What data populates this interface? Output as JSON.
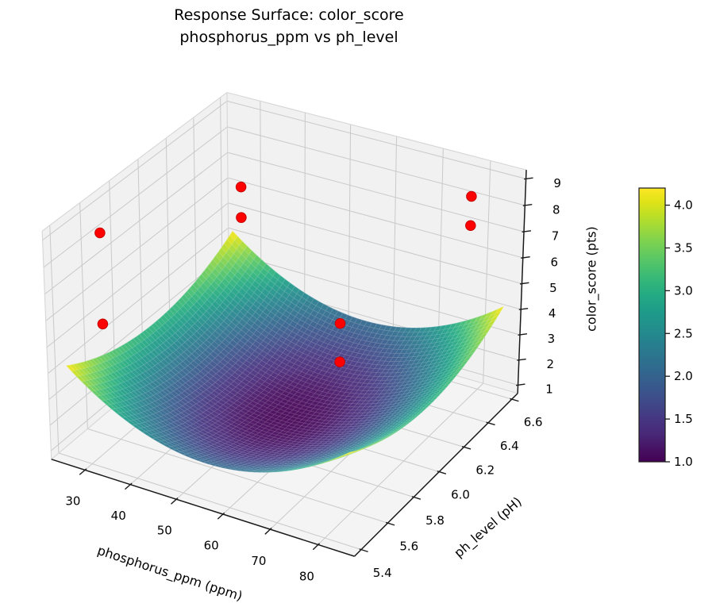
{
  "title": {
    "line1": "Response Surface: color_score",
    "line2": "phosphorus_ppm vs ph_level"
  },
  "chart_data": {
    "type": "surface",
    "title": "Response Surface: color_score\nphosphorus_ppm vs ph_level",
    "xlabel": "phosphorus_ppm (ppm)",
    "ylabel": "ph_level (pH)",
    "zlabel": "color_score (pts)",
    "xlim": [
      22.5,
      87.5
    ],
    "ylim": [
      5.35,
      6.65
    ],
    "zlim": [
      0.667,
      9.333
    ],
    "x_ticks": [
      {
        "v": 30,
        "label": "30"
      },
      {
        "v": 40,
        "label": "40"
      },
      {
        "v": 50,
        "label": "50"
      },
      {
        "v": 60,
        "label": "60"
      },
      {
        "v": 70,
        "label": "70"
      },
      {
        "v": 80,
        "label": "80"
      }
    ],
    "y_ticks": [
      {
        "v": 5.4,
        "label": "5.4"
      },
      {
        "v": 5.6,
        "label": "5.6"
      },
      {
        "v": 5.8,
        "label": "5.8"
      },
      {
        "v": 6.0,
        "label": "6.0"
      },
      {
        "v": 6.2,
        "label": "6.2"
      },
      {
        "v": 6.4,
        "label": "6.4"
      },
      {
        "v": 6.6,
        "label": "6.6"
      }
    ],
    "z_ticks": [
      {
        "v": 1,
        "label": "1"
      },
      {
        "v": 2,
        "label": "2"
      },
      {
        "v": 3,
        "label": "3"
      },
      {
        "v": 4,
        "label": "4"
      },
      {
        "v": 5,
        "label": "5"
      },
      {
        "v": 6,
        "label": "6"
      },
      {
        "v": 7,
        "label": "7"
      },
      {
        "v": 8,
        "label": "8"
      },
      {
        "v": 9,
        "label": "9"
      }
    ],
    "grid": true,
    "view": {
      "elev": 30,
      "azim": -60,
      "projection": "3d"
    },
    "surface": {
      "colormap": "viridis",
      "model": "z = 1.0 + 2.1*((x-55)/30)^2 + 1.1*((y-6.0)/0.6)^2",
      "z0": 1.0,
      "a": 2.1,
      "x0": 55,
      "xs": 30,
      "b": 1.1,
      "y0": 6.0,
      "ys": 0.6,
      "x_range": [
        25,
        85
      ],
      "y_range": [
        5.4,
        6.6
      ],
      "z_min": 1.0,
      "z_max": 4.2,
      "mesh_n": 55
    },
    "scatter": {
      "color": "#ff0000",
      "edge_color": "#c00000",
      "points": [
        {
          "phosphorus_ppm": 30,
          "ph_level": 5.5,
          "color_score": 9.0
        },
        {
          "phosphorus_ppm": 30,
          "ph_level": 5.5,
          "color_score": 5.6
        },
        {
          "phosphorus_ppm": 30,
          "ph_level": 6.5,
          "color_score": 6.6
        },
        {
          "phosphorus_ppm": 30,
          "ph_level": 6.5,
          "color_score": 5.4
        },
        {
          "phosphorus_ppm": 80,
          "ph_level": 5.5,
          "color_score": 8.2
        },
        {
          "phosphorus_ppm": 80,
          "ph_level": 5.5,
          "color_score": 6.8
        },
        {
          "phosphorus_ppm": 80,
          "ph_level": 6.5,
          "color_score": 8.6
        },
        {
          "phosphorus_ppm": 80,
          "ph_level": 6.5,
          "color_score": 7.5
        }
      ]
    },
    "colorbar": {
      "vmin": 1.0,
      "vmax": 4.2,
      "ticks": [
        {
          "v": 1.0,
          "label": "1.0"
        },
        {
          "v": 1.5,
          "label": "1.5"
        },
        {
          "v": 2.0,
          "label": "2.0"
        },
        {
          "v": 2.5,
          "label": "2.5"
        },
        {
          "v": 3.0,
          "label": "3.0"
        },
        {
          "v": 3.5,
          "label": "3.5"
        },
        {
          "v": 4.0,
          "label": "4.0"
        }
      ]
    },
    "colors": {
      "pane_wall": "#f1f1f2",
      "pane_floor": "#f4f4f5",
      "grid_line": "#c9c9c9",
      "box_edge": "#d6d6d6",
      "axis_line": "#1a1a1a",
      "text": "#000000"
    },
    "viridis_lut": [
      "#440154",
      "#471365",
      "#482878",
      "#463480",
      "#414487",
      "#3b528b",
      "#355f8d",
      "#2f6c8e",
      "#2a788e",
      "#25848e",
      "#21918c",
      "#1e9c89",
      "#22a884",
      "#2fb47c",
      "#44bf70",
      "#5ec962",
      "#7ad151",
      "#9bd93c",
      "#bddf26",
      "#dfe318",
      "#fde725"
    ]
  }
}
